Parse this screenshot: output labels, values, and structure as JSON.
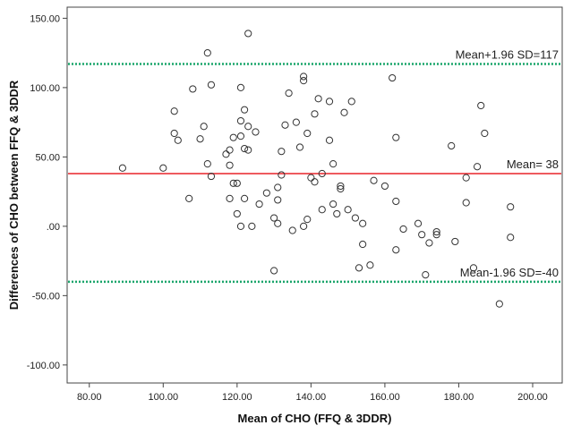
{
  "chart_data": {
    "type": "scatter",
    "title": "",
    "xlabel": "Mean of CHO (FFQ & 3DDR)",
    "ylabel": "Differences of CHO between FFQ & 3DDR",
    "xlim": [
      74,
      208
    ],
    "ylim": [
      -113,
      158
    ],
    "x_ticks": [
      80,
      100,
      120,
      140,
      160,
      180,
      200
    ],
    "x_tick_labels": [
      "80.00",
      "100.00",
      "120.00",
      "140.00",
      "160.00",
      "180.00",
      "200.00"
    ],
    "y_ticks": [
      150,
      100,
      50,
      0,
      -50,
      -100
    ],
    "y_tick_labels": [
      "150.00",
      "100.00",
      "50.00",
      ".00",
      "-50.00",
      "-100.00"
    ],
    "grid": false,
    "colors": {
      "mean_line": "#e8232a",
      "limit_lines": "#1aa56b",
      "points": "#333333"
    },
    "reference_lines": [
      {
        "y": 117,
        "label": "Mean+1.96 SD=117",
        "style": "dotted",
        "color": "#1aa56b"
      },
      {
        "y": 38,
        "label": "Mean= 38",
        "style": "solid",
        "color": "#e8232a"
      },
      {
        "y": -40,
        "label": "Mean-1.96 SD=-40",
        "style": "dotted",
        "color": "#1aa56b"
      }
    ],
    "points": [
      [
        89,
        42
      ],
      [
        100,
        42
      ],
      [
        103,
        83
      ],
      [
        103,
        67
      ],
      [
        104,
        62
      ],
      [
        107,
        20
      ],
      [
        108,
        99
      ],
      [
        110,
        63
      ],
      [
        111,
        72
      ],
      [
        112,
        125
      ],
      [
        112,
        45
      ],
      [
        113,
        36
      ],
      [
        113,
        102
      ],
      [
        117,
        52
      ],
      [
        118,
        20
      ],
      [
        118,
        44
      ],
      [
        118,
        55
      ],
      [
        119,
        31
      ],
      [
        119,
        64
      ],
      [
        120,
        31
      ],
      [
        120,
        9
      ],
      [
        121,
        100
      ],
      [
        121,
        65
      ],
      [
        121,
        76
      ],
      [
        121,
        0
      ],
      [
        122,
        84
      ],
      [
        122,
        20
      ],
      [
        122,
        56
      ],
      [
        123,
        72
      ],
      [
        123,
        139
      ],
      [
        123,
        55
      ],
      [
        124,
        0
      ],
      [
        125,
        68
      ],
      [
        126,
        16
      ],
      [
        128,
        24
      ],
      [
        130,
        6
      ],
      [
        130,
        -32
      ],
      [
        131,
        28
      ],
      [
        131,
        2
      ],
      [
        131,
        19
      ],
      [
        132,
        54
      ],
      [
        132,
        37
      ],
      [
        133,
        73
      ],
      [
        134,
        96
      ],
      [
        135,
        -3
      ],
      [
        136,
        75
      ],
      [
        137,
        57
      ],
      [
        138,
        108
      ],
      [
        138,
        105
      ],
      [
        138,
        0
      ],
      [
        139,
        67
      ],
      [
        139,
        5
      ],
      [
        140,
        35
      ],
      [
        141,
        32
      ],
      [
        141,
        81
      ],
      [
        142,
        92
      ],
      [
        143,
        38
      ],
      [
        143,
        12
      ],
      [
        145,
        62
      ],
      [
        145,
        90
      ],
      [
        146,
        45
      ],
      [
        146,
        16
      ],
      [
        147,
        9
      ],
      [
        148,
        29
      ],
      [
        148,
        27
      ],
      [
        149,
        82
      ],
      [
        150,
        12
      ],
      [
        151,
        90
      ],
      [
        152,
        6
      ],
      [
        153,
        -30
      ],
      [
        154,
        2
      ],
      [
        154,
        -13
      ],
      [
        156,
        -28
      ],
      [
        157,
        33
      ],
      [
        160,
        29
      ],
      [
        162,
        107
      ],
      [
        163,
        64
      ],
      [
        163,
        18
      ],
      [
        163,
        -17
      ],
      [
        165,
        -2
      ],
      [
        169,
        2
      ],
      [
        170,
        -6
      ],
      [
        171,
        -35
      ],
      [
        172,
        -12
      ],
      [
        174,
        -6
      ],
      [
        174,
        -4
      ],
      [
        178,
        58
      ],
      [
        179,
        -11
      ],
      [
        182,
        35
      ],
      [
        182,
        17
      ],
      [
        184,
        -30
      ],
      [
        185,
        43
      ],
      [
        186,
        87
      ],
      [
        187,
        67
      ],
      [
        194,
        14
      ],
      [
        194,
        -8
      ],
      [
        191,
        -56
      ]
    ]
  }
}
